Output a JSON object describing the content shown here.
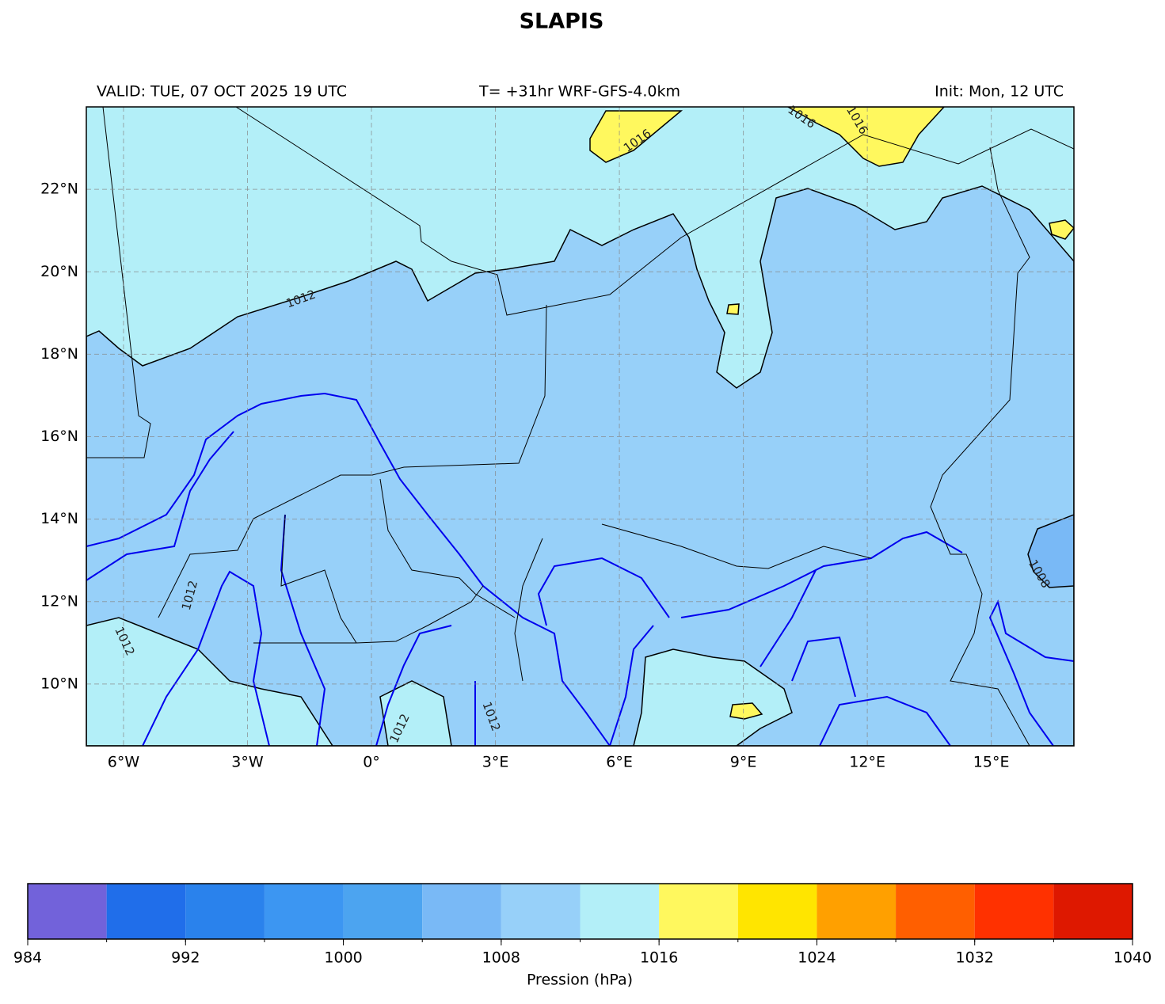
{
  "title": "SLAPIS",
  "valid": "VALID: TUE, 07 OCT 2025 19 UTC",
  "run": "T= +31hr WRF-GFS-4.0km",
  "init": "Init: Mon, 12 UTC",
  "map": {
    "xlim": [
      -6.9,
      17
    ],
    "ylim": [
      8.5,
      24
    ],
    "grid": true,
    "xticks": [
      {
        "value": -6,
        "label": "6°W"
      },
      {
        "value": -3,
        "label": "3°W"
      },
      {
        "value": 0,
        "label": "0°"
      },
      {
        "value": 3,
        "label": "3°E"
      },
      {
        "value": 6,
        "label": "6°E"
      },
      {
        "value": 9,
        "label": "9°E"
      },
      {
        "value": 12,
        "label": "12°E"
      },
      {
        "value": 15,
        "label": "15°E"
      }
    ],
    "yticks": [
      {
        "value": 10,
        "label": "10°N"
      },
      {
        "value": 12,
        "label": "12°N"
      },
      {
        "value": 14,
        "label": "14°N"
      },
      {
        "value": 16,
        "label": "16°N"
      },
      {
        "value": 18,
        "label": "18°N"
      },
      {
        "value": 20,
        "label": "20°N"
      },
      {
        "value": 22,
        "label": "22°N"
      }
    ],
    "contour_labels": [
      "1012",
      "1016",
      "1016",
      "1016",
      "1008",
      "1012",
      "1012",
      "1012",
      "1012"
    ]
  },
  "colorbar": {
    "label": "Pression (hPa)",
    "bounds": [
      984,
      988,
      992,
      996,
      1000,
      1004,
      1008,
      1012,
      1016,
      1020,
      1024,
      1028,
      1032,
      1036,
      1040
    ],
    "colors": [
      "#7262da",
      "#206eea",
      "#2a82ec",
      "#3c96f2",
      "#4ca4f0",
      "#79b9f6",
      "#97d0f9",
      "#b3eff8",
      "#fff85e",
      "#ffe500",
      "#ffa000",
      "#ff5f00",
      "#ff3100",
      "#de1800"
    ],
    "ticks": [
      984,
      992,
      1000,
      1008,
      1016,
      1024,
      1032,
      1040
    ]
  }
}
